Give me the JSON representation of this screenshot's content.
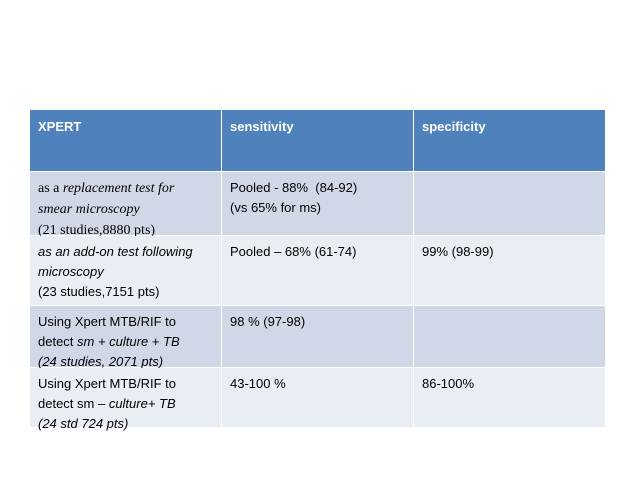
{
  "table": {
    "header": [
      "XPERT",
      "sensitivity",
      "specificity"
    ],
    "rows": [
      [
        [
          [
            {
              "text": "as a ",
              "serif": true
            },
            {
              "text": "replacement test for",
              "serif": true,
              "italic": true
            }
          ],
          [
            {
              "text": "smear microscopy",
              "serif": true,
              "italic": true
            }
          ],
          [
            {
              "text": "(21 studies,8880 pts)",
              "serif": true
            }
          ]
        ],
        [
          [
            {
              "text": "Pooled - 88%  (84-92)"
            }
          ],
          [
            {
              "text": "(vs 65% for ms)"
            }
          ]
        ],
        []
      ],
      [
        [
          [
            {
              "text": "as an add-on test following",
              "italic": true
            }
          ],
          [
            {
              "text": "microscopy",
              "italic": true
            }
          ],
          [
            {
              "text": "(23 studies,7151 pts)"
            }
          ]
        ],
        [
          [
            {
              "text": "Pooled – 68% (61-74)"
            }
          ]
        ],
        [
          [
            {
              "text": "99% (98-99)"
            }
          ]
        ]
      ],
      [
        [
          [
            {
              "text": "Using Xpert MTB/RIF to"
            }
          ],
          [
            {
              "text": "detect "
            },
            {
              "text": "sm + culture + TB",
              "italic": true
            }
          ],
          [
            {
              "text": "(24 studies, 2071 pts)",
              "italic": true
            }
          ]
        ],
        [
          [
            {
              "text": "98 % (97-98)"
            }
          ]
        ],
        []
      ],
      [
        [
          [
            {
              "text": "Using Xpert MTB/RIF to"
            }
          ],
          [
            {
              "text": "detect sm – "
            },
            {
              "text": "culture+ TB",
              "italic": true
            }
          ],
          [
            {
              "text": "(24 std 724 pts)",
              "italic": true
            }
          ]
        ],
        [
          [
            {
              "text": "43-100 %"
            }
          ]
        ],
        [
          [
            {
              "text": "86-100%"
            }
          ]
        ]
      ]
    ]
  }
}
